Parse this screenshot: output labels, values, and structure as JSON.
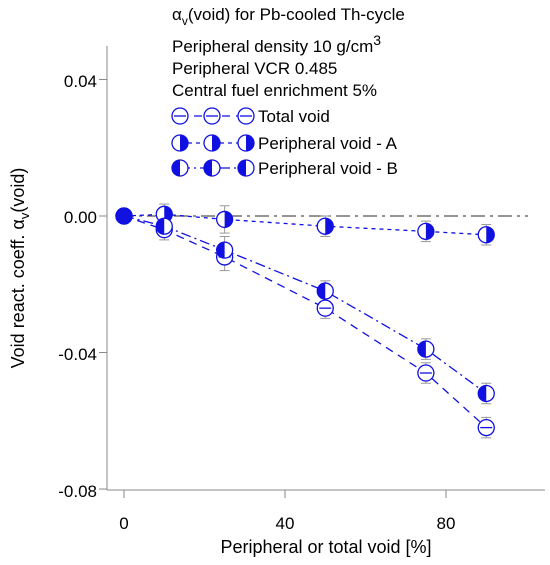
{
  "chart_data": {
    "type": "scatter",
    "title": "αv(void) for Pb-cooled Th-cycle",
    "title_parts": {
      "alpha": "α",
      "sub": "v",
      "rest": "(void) for Pb-cooled Th-cycle"
    },
    "annotations": {
      "density": {
        "text": "Peripheral density 10 g/cm",
        "sup": "3"
      },
      "vcr": "Peripheral VCR 0.485",
      "enrichment": "Central fuel enrichment 5%"
    },
    "xlabel": "Peripheral or total void [%]",
    "ylabel": {
      "text": "Void react. coeff.  α",
      "sub": "v",
      "tail": "(void)"
    },
    "xlim": [
      -10,
      100
    ],
    "ylim": [
      -0.08,
      0.04
    ],
    "x_ticks": [
      "0",
      "40",
      "80"
    ],
    "y_ticks": [
      "0.04",
      "0.00",
      "-0.04",
      "-0.08"
    ],
    "grid": false,
    "legend_position": "top-right",
    "reference_line": {
      "y": 0,
      "style": "dash-dot",
      "color": "#555555"
    },
    "series": [
      {
        "name": "Total void",
        "marker": "open-circle-bar",
        "line": "long-dash",
        "x": [
          0,
          10,
          25,
          50,
          75,
          90
        ],
        "y": [
          0.0,
          -0.004,
          -0.012,
          -0.027,
          -0.046,
          -0.062
        ],
        "err": [
          0.001,
          0.003,
          0.004,
          0.003,
          0.003,
          0.003
        ]
      },
      {
        "name": "Peripheral void - A",
        "marker": "half-filled-right",
        "line": "short-dash",
        "x": [
          0,
          10,
          25,
          50,
          75,
          90
        ],
        "y": [
          0.0,
          0.0005,
          -0.001,
          -0.003,
          -0.0045,
          -0.0055
        ],
        "err": [
          0.001,
          0.003,
          0.004,
          0.003,
          0.003,
          0.003
        ]
      },
      {
        "name": "Peripheral void - B",
        "marker": "half-filled-left",
        "line": "dash-dot",
        "x": [
          0,
          10,
          25,
          50,
          75,
          90
        ],
        "y": [
          0.0,
          -0.003,
          -0.01,
          -0.022,
          -0.039,
          -0.052
        ],
        "err": [
          0.001,
          0.003,
          0.004,
          0.003,
          0.003,
          0.003
        ]
      }
    ],
    "colors": {
      "series": "#1010e0",
      "axis": "#888888",
      "errorbar": "#999999",
      "fill": "#1010e0"
    }
  }
}
